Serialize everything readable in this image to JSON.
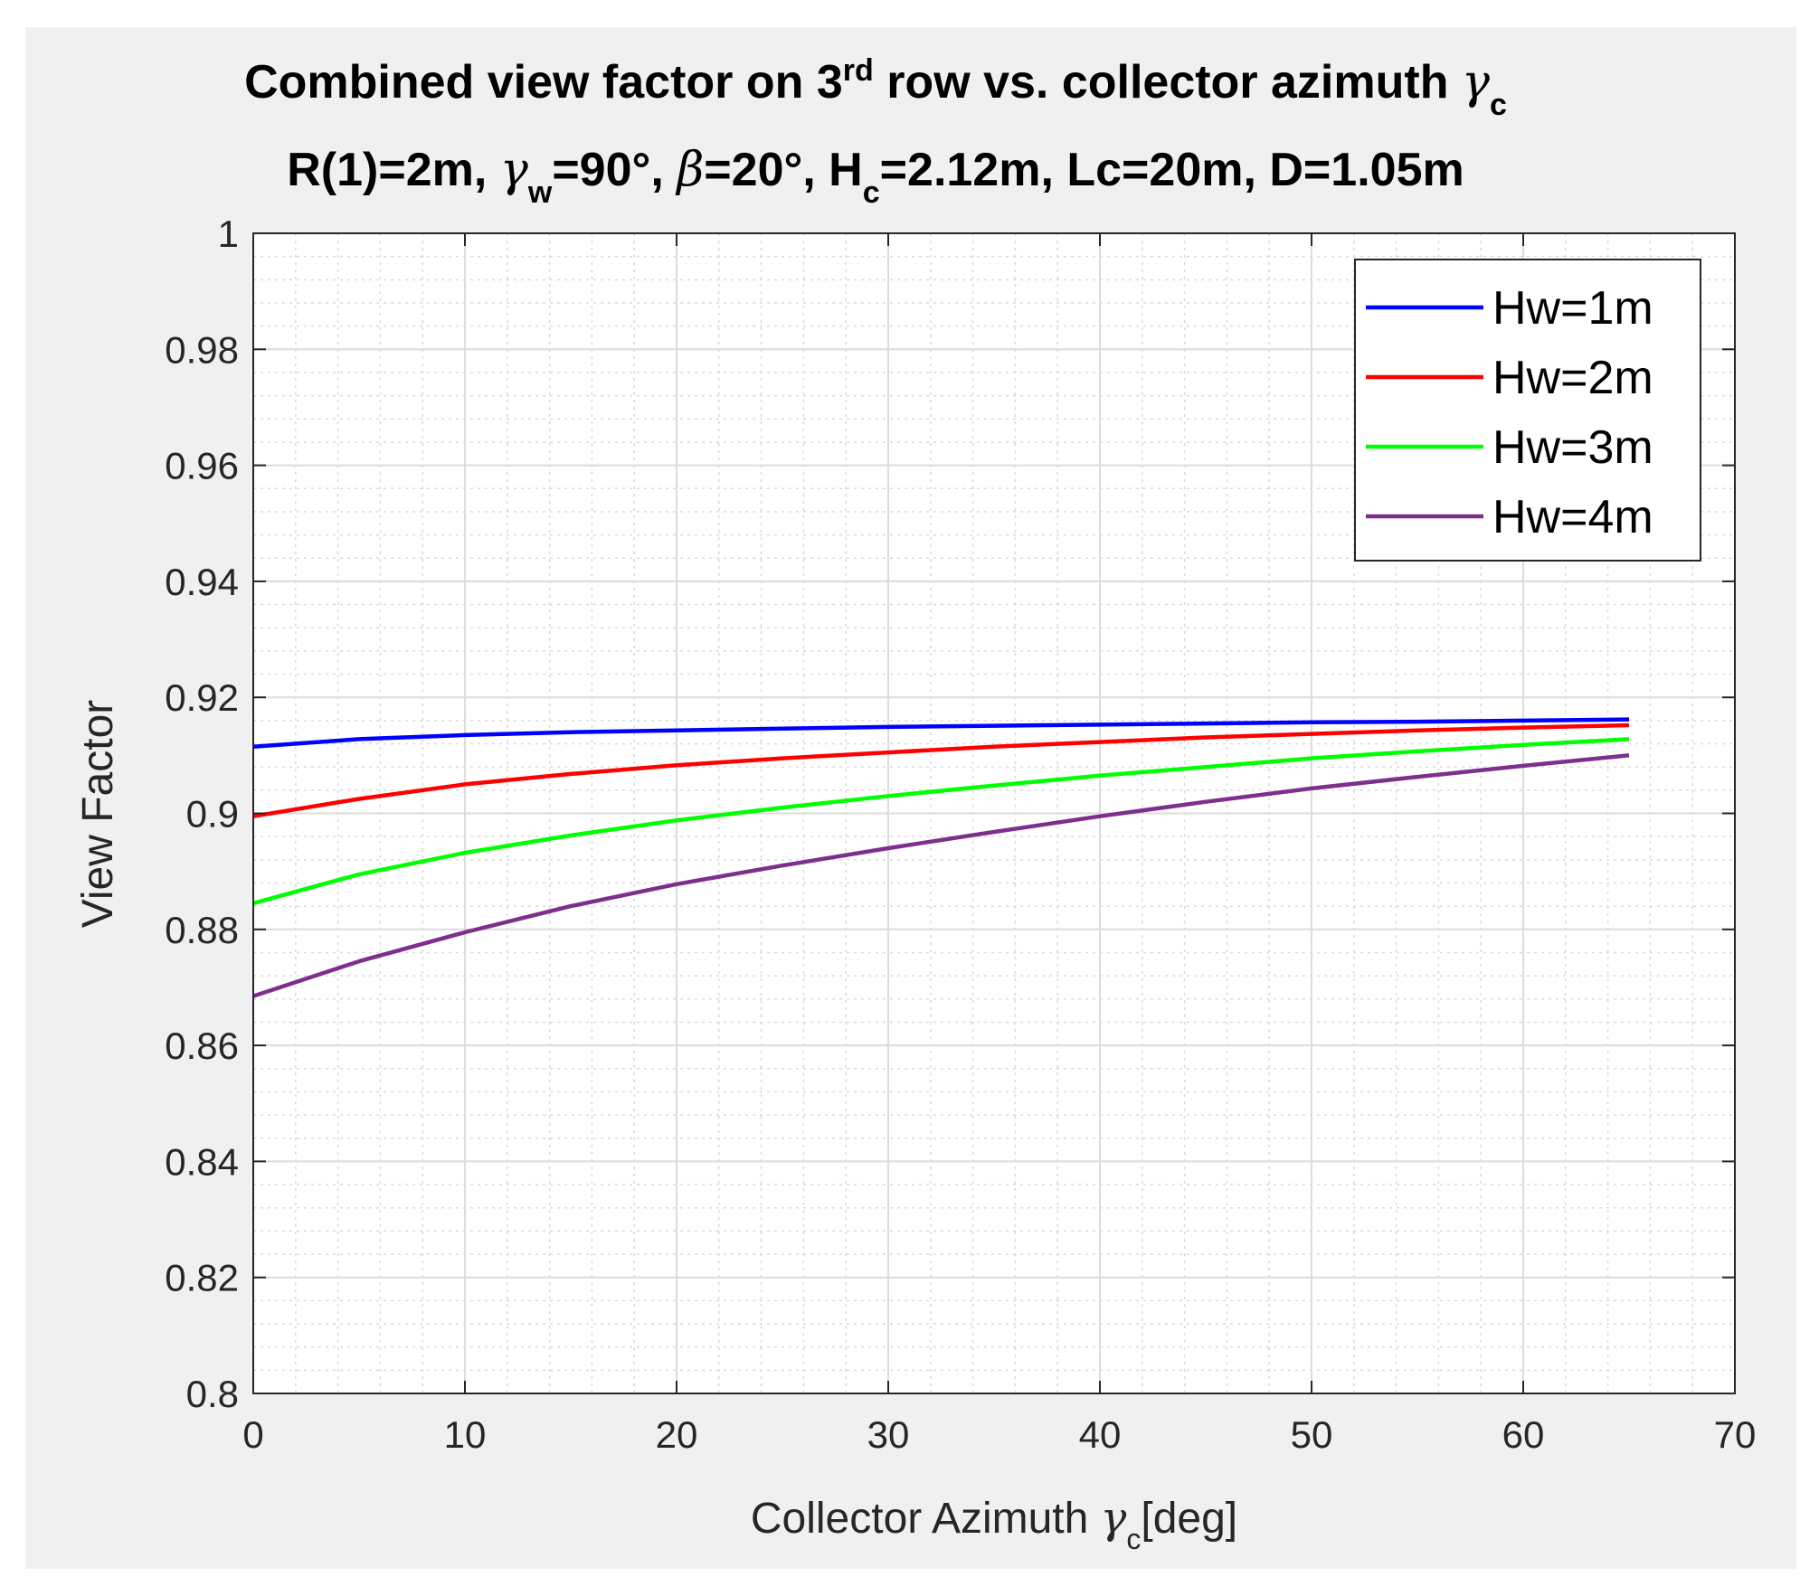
{
  "chart_data": {
    "type": "line",
    "title": {
      "line1_a": "Combined view factor on 3",
      "line1_sup": "rd",
      "line1_b": " row vs. collector azimuth ",
      "line1_greek": "γ",
      "line1_sub": "c",
      "line2_a": "R(1)=2m, ",
      "line2_g1": "γ",
      "line2_s1": "w",
      "line2_b": "=90°, ",
      "line2_g2": "β",
      "line2_c": "=20°, H",
      "line2_s2": "c",
      "line2_d": "=2.12m, Lc=20m, D=1.05m"
    },
    "xlabel": {
      "text": "Collector Azimuth ",
      "greek": "γ",
      "sub": "c",
      "unit": "[deg]"
    },
    "ylabel": "View Factor",
    "xlim": [
      0,
      70
    ],
    "ylim": [
      0.8,
      1
    ],
    "xticks": [
      0,
      10,
      20,
      30,
      40,
      50,
      60,
      70
    ],
    "xtick_labels": [
      "0",
      "10",
      "20",
      "30",
      "40",
      "50",
      "60",
      "70"
    ],
    "yticks": [
      0.8,
      0.82,
      0.84,
      0.86,
      0.88,
      0.9,
      0.92,
      0.94,
      0.96,
      0.98,
      1
    ],
    "ytick_labels": [
      "0.8",
      "0.82",
      "0.84",
      "0.86",
      "0.88",
      "0.9",
      "0.92",
      "0.94",
      "0.96",
      "0.98",
      "1"
    ],
    "grid": true,
    "minor_grid": true,
    "legend_position": "top-right",
    "x": [
      0,
      5,
      10,
      15,
      20,
      25,
      30,
      35,
      40,
      45,
      50,
      55,
      60,
      65
    ],
    "series": [
      {
        "name": "Hw=1m",
        "color": "#0000ff",
        "values": [
          0.9115,
          0.9128,
          0.9135,
          0.914,
          0.9143,
          0.9146,
          0.9149,
          0.9151,
          0.9153,
          0.9155,
          0.9157,
          0.9158,
          0.916,
          0.9162
        ]
      },
      {
        "name": "Hw=2m",
        "color": "#ff0000",
        "values": [
          0.8995,
          0.9025,
          0.905,
          0.9068,
          0.9083,
          0.9095,
          0.9105,
          0.9115,
          0.9123,
          0.9131,
          0.9137,
          0.9143,
          0.9148,
          0.9152
        ]
      },
      {
        "name": "Hw=3m",
        "color": "#00ff00",
        "values": [
          0.8845,
          0.8895,
          0.8932,
          0.8962,
          0.8988,
          0.901,
          0.903,
          0.9048,
          0.9065,
          0.908,
          0.9095,
          0.9107,
          0.9118,
          0.9128
        ]
      },
      {
        "name": "Hw=4m",
        "color": "#7e2f8e",
        "values": [
          0.8685,
          0.8745,
          0.8795,
          0.884,
          0.8878,
          0.891,
          0.894,
          0.8968,
          0.8995,
          0.902,
          0.9043,
          0.9063,
          0.9082,
          0.91
        ]
      }
    ]
  }
}
